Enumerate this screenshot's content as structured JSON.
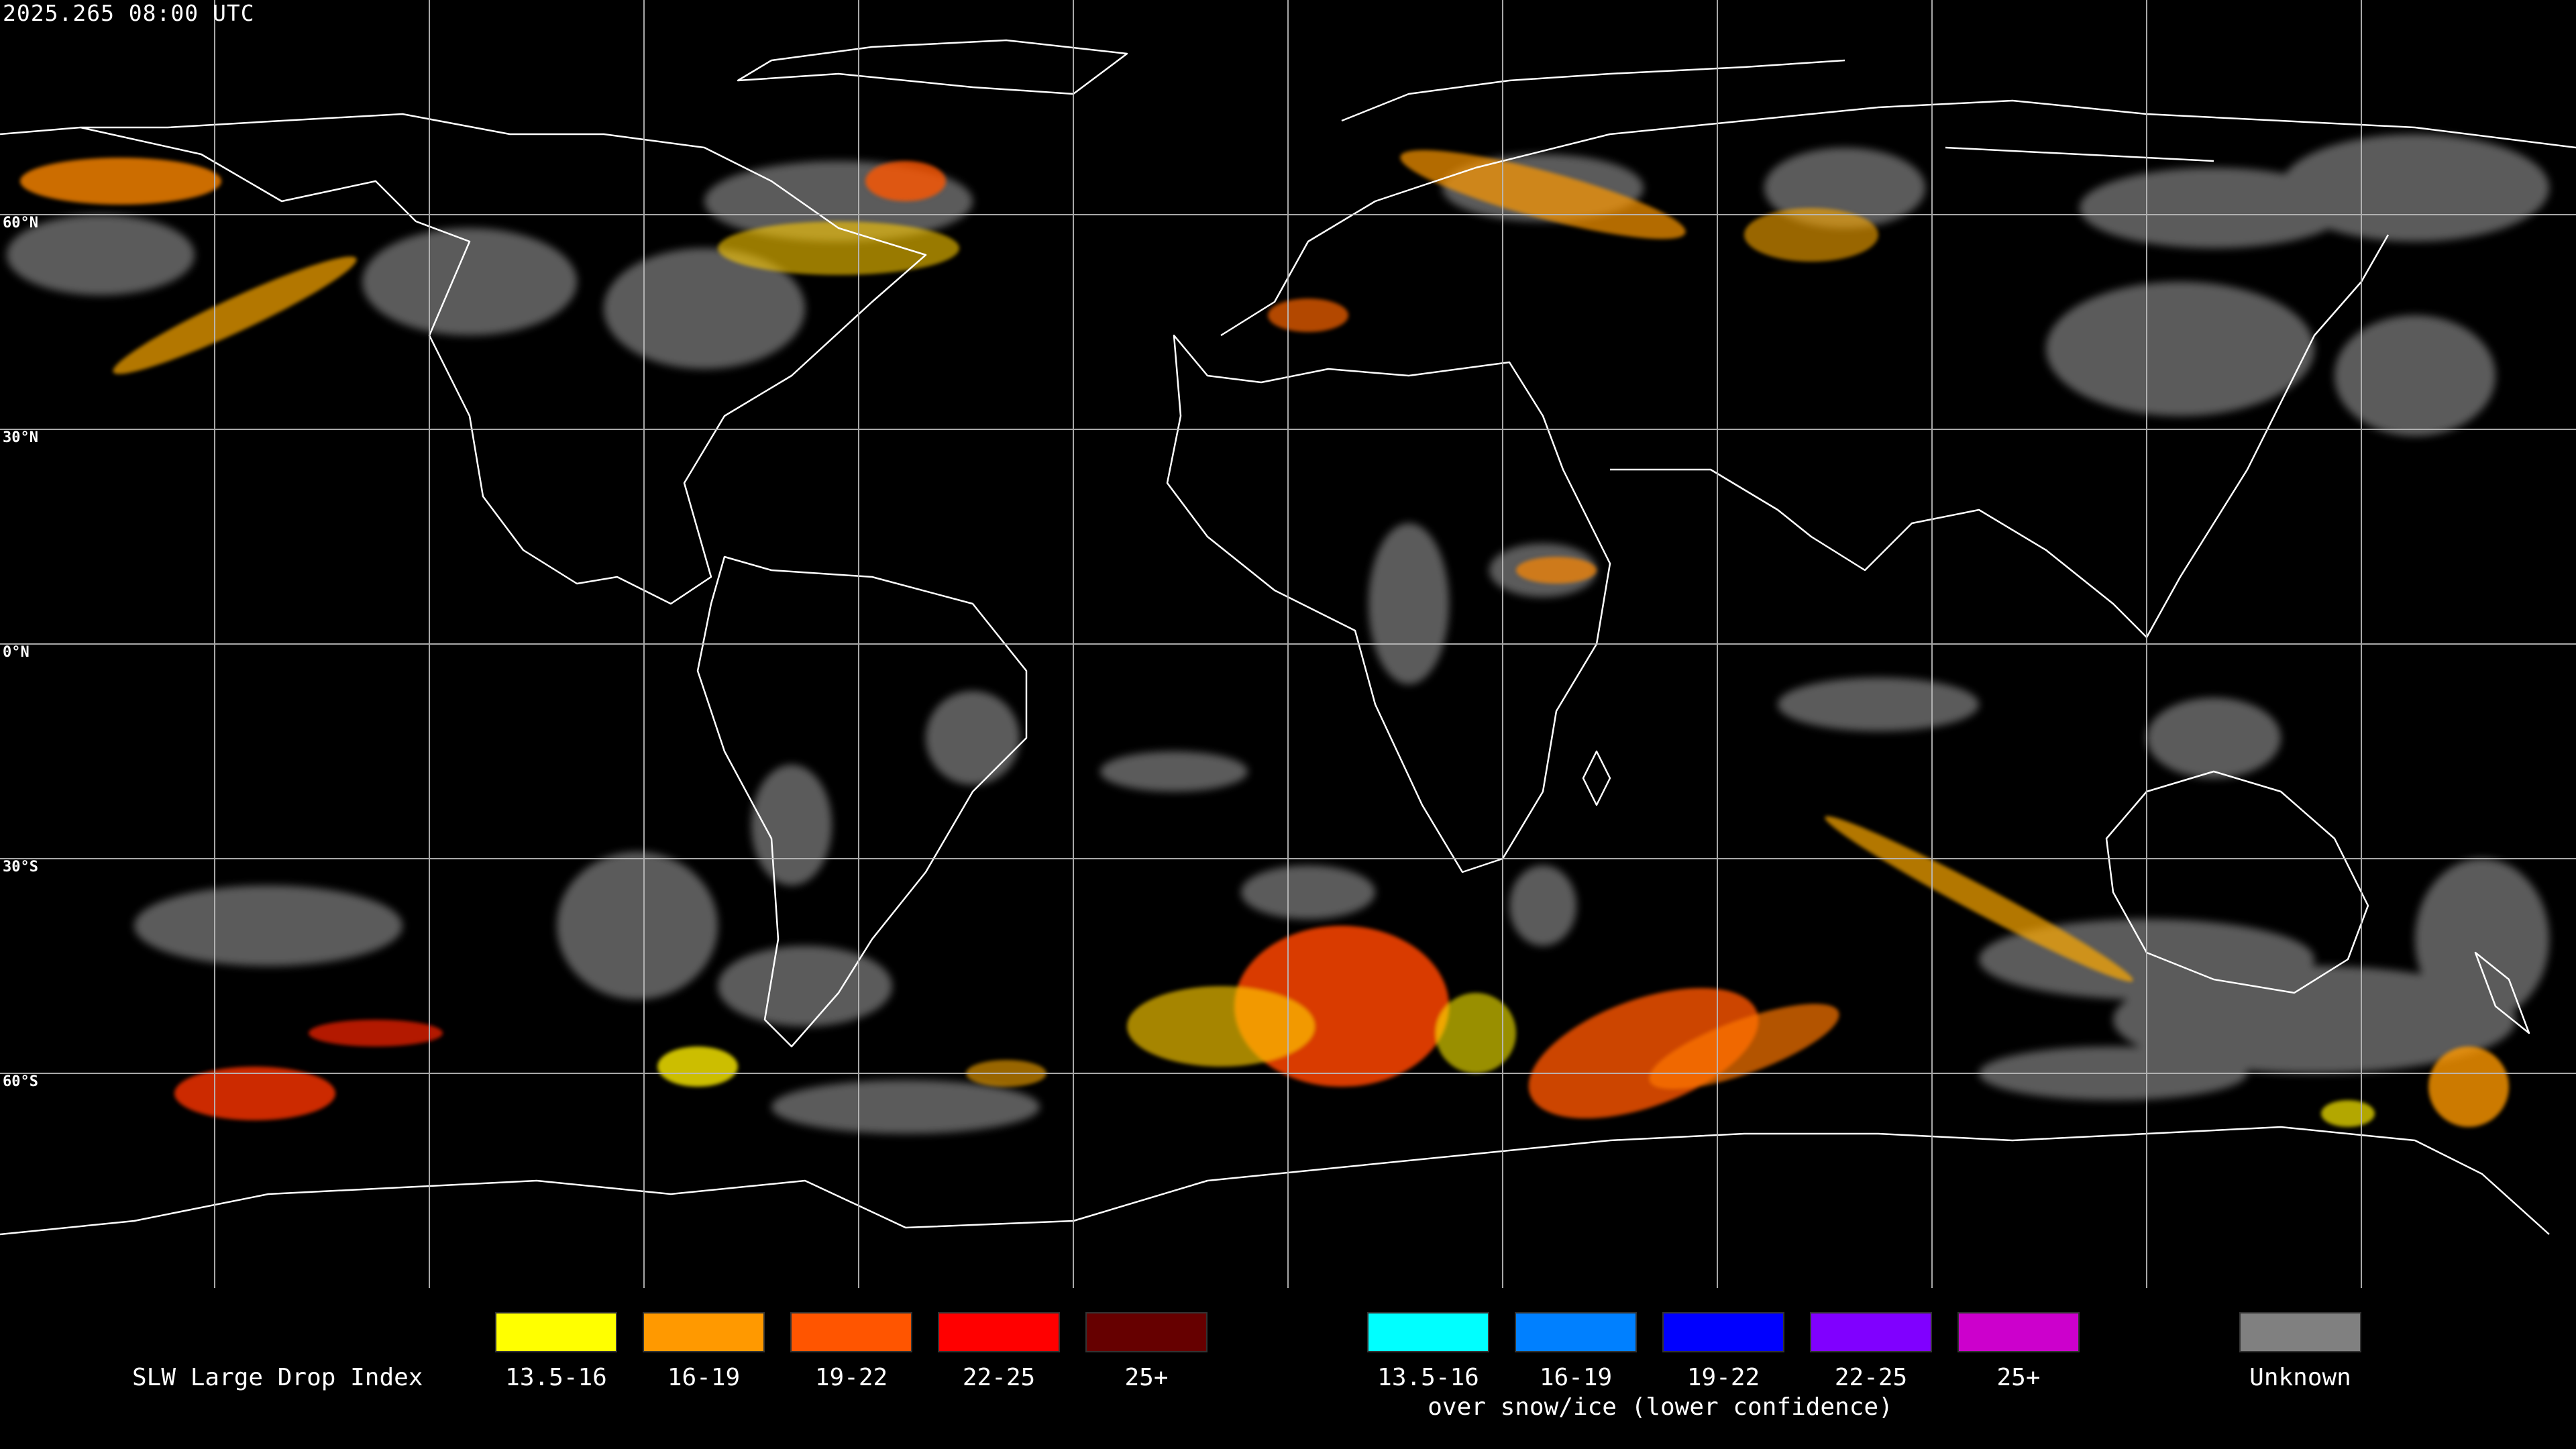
{
  "timestamp": "2025.265 08:00 UTC",
  "latitude_labels": [
    "60°N",
    "30°N",
    "0°N",
    "30°S",
    "60°S"
  ],
  "legend": {
    "title": "SLW Large Drop Index",
    "primary": [
      {
        "label": "13.5-16",
        "color": "#ffff00"
      },
      {
        "label": "16-19",
        "color": "#ff9900"
      },
      {
        "label": "19-22",
        "color": "#ff5500"
      },
      {
        "label": "22-25",
        "color": "#ff0000"
      },
      {
        "label": "25+",
        "color": "#660000"
      }
    ],
    "snow_ice": [
      {
        "label": "13.5-16",
        "color": "#00ffff"
      },
      {
        "label": "16-19",
        "color": "#0080ff"
      },
      {
        "label": "19-22",
        "color": "#0000ff"
      },
      {
        "label": "22-25",
        "color": "#8000ff"
      },
      {
        "label": "25+",
        "color": "#cc00cc"
      }
    ],
    "snow_ice_caption": "over snow/ice (lower confidence)",
    "unknown": {
      "label": "Unknown",
      "color": "#808080"
    }
  },
  "colors": {
    "background": "#000000",
    "coastline": "#ffffff",
    "grid": "#bbbbbb"
  }
}
